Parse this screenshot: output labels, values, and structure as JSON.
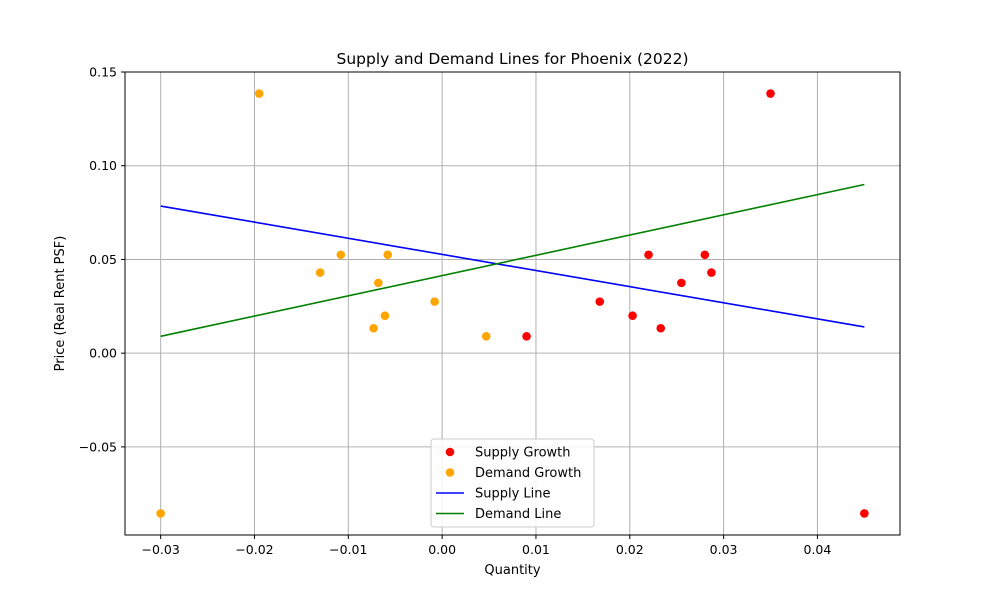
{
  "chart_data": {
    "type": "scatter",
    "title": "Supply and Demand Lines for Phoenix (2022)",
    "xlabel": "Quantity",
    "ylabel": "Price (Real Rent PSF)",
    "xlim": [
      -0.0338,
      0.0488
    ],
    "ylim": [
      -0.097,
      0.15
    ],
    "grid": true,
    "legend_position": "lower center",
    "x_ticks": [
      -0.03,
      -0.02,
      -0.01,
      0.0,
      0.01,
      0.02,
      0.03,
      0.04
    ],
    "x_tick_labels": [
      "−0.03",
      "−0.02",
      "−0.01",
      "0.00",
      "0.01",
      "0.02",
      "0.03",
      "0.04"
    ],
    "y_ticks": [
      -0.05,
      0.0,
      0.05,
      0.1,
      0.15
    ],
    "y_tick_labels": [
      "−0.05",
      "0.00",
      "0.05",
      "0.10",
      "0.15"
    ],
    "scatter_series": [
      {
        "name": "Supply Growth",
        "color": "#ff0000",
        "points": [
          [
            0.009,
            0.009
          ],
          [
            0.0168,
            0.0275
          ],
          [
            0.0203,
            0.02
          ],
          [
            0.022,
            0.0525
          ],
          [
            0.0233,
            0.0133
          ],
          [
            0.0255,
            0.0375
          ],
          [
            0.028,
            0.0525
          ],
          [
            0.0287,
            0.043
          ],
          [
            0.035,
            0.1385
          ],
          [
            0.045,
            -0.0855
          ]
        ]
      },
      {
        "name": "Demand Growth",
        "color": "#ffa500",
        "points": [
          [
            -0.03,
            -0.0855
          ],
          [
            -0.0195,
            0.1385
          ],
          [
            -0.013,
            0.043
          ],
          [
            -0.0108,
            0.0525
          ],
          [
            -0.0073,
            0.0133
          ],
          [
            -0.0068,
            0.0375
          ],
          [
            -0.0061,
            0.02
          ],
          [
            -0.0058,
            0.0525
          ],
          [
            -0.0008,
            0.0275
          ],
          [
            0.0047,
            0.009
          ]
        ]
      }
    ],
    "line_series": [
      {
        "name": "Supply Line",
        "color": "#0000ff",
        "points": [
          [
            -0.03,
            0.0785
          ],
          [
            0.045,
            0.014
          ]
        ]
      },
      {
        "name": "Demand Line",
        "color": "#008000",
        "points": [
          [
            -0.03,
            0.009
          ],
          [
            0.045,
            0.09
          ]
        ]
      }
    ]
  }
}
